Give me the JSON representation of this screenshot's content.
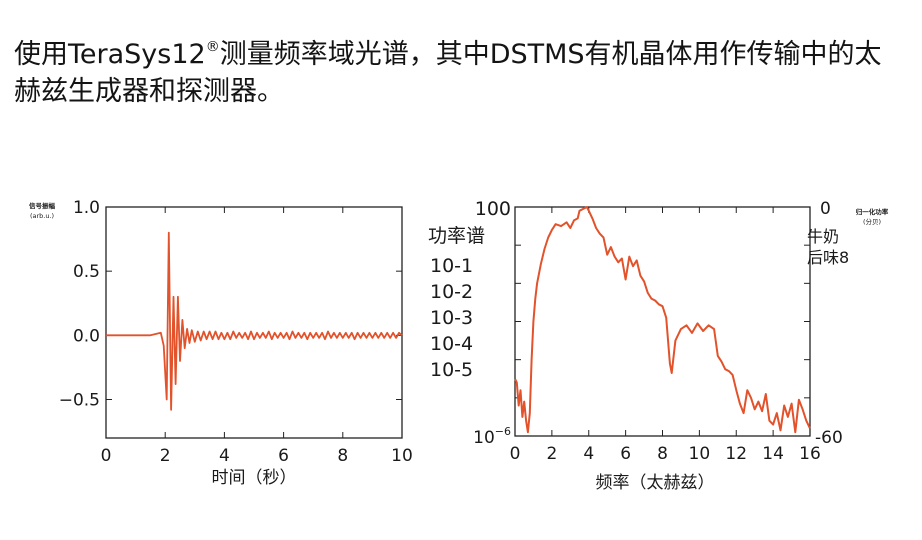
{
  "title": {
    "prefix": "使用TeraSys12",
    "mark": "®",
    "suffix": "测量频率域光谱，其中DSTMS有机晶体用作传输中的太赫兹生成器和探测器。"
  },
  "colors": {
    "trace": "#e2522b",
    "axis": "#222222",
    "text": "#1a1a1a"
  },
  "chart_data": [
    {
      "type": "line",
      "title": "",
      "xlabel": "时间（秒）",
      "ylabel_line1": "信号振幅",
      "ylabel_line2": "(arb.u.)",
      "xlim": [
        0,
        10
      ],
      "ylim": [
        -0.8,
        1.0
      ],
      "xticks": [
        0,
        2,
        4,
        6,
        8,
        10
      ],
      "xtick_labels": [
        "0",
        "2",
        "4",
        "6",
        "8",
        "10"
      ],
      "yticks": [
        1.0,
        0.5,
        0.0,
        -0.5
      ],
      "ytick_labels": [
        "1.0",
        "0.5",
        "0.0",
        "−0.5"
      ],
      "series": [
        {
          "x": [
            0,
            1.5,
            1.85,
            1.95,
            2.05,
            2.12,
            2.2,
            2.28,
            2.35,
            2.43,
            2.5,
            2.58,
            2.66,
            2.74,
            2.82,
            2.9,
            3.0,
            3.1,
            3.2,
            3.3,
            3.4,
            3.5,
            3.6,
            3.7,
            3.8,
            3.9,
            4.0,
            4.1,
            4.2,
            4.3,
            4.4,
            4.5,
            4.6,
            4.7,
            4.8,
            4.9,
            5.0,
            5.1,
            5.2,
            5.3,
            5.4,
            5.5,
            5.6,
            5.7,
            5.8,
            5.9,
            6.0,
            6.1,
            6.2,
            6.3,
            6.4,
            6.5,
            6.6,
            6.7,
            6.8,
            6.9,
            7.0,
            7.1,
            7.2,
            7.3,
            7.4,
            7.5,
            7.6,
            7.7,
            7.8,
            7.9,
            8.0,
            8.1,
            8.2,
            8.3,
            8.4,
            8.5,
            8.6,
            8.7,
            8.8,
            8.9,
            9.0,
            9.1,
            9.2,
            9.3,
            9.4,
            9.5,
            9.6,
            9.7,
            9.8,
            9.9,
            10.0
          ],
          "y": [
            0.0,
            0.0,
            0.02,
            -0.08,
            -0.5,
            0.8,
            -0.58,
            0.3,
            -0.38,
            0.3,
            -0.2,
            0.12,
            -0.1,
            0.05,
            -0.06,
            0.04,
            -0.05,
            0.03,
            -0.04,
            0.03,
            -0.03,
            0.03,
            -0.03,
            0.03,
            -0.03,
            0.02,
            -0.03,
            0.02,
            -0.03,
            0.03,
            -0.02,
            0.02,
            -0.02,
            0.02,
            -0.03,
            0.03,
            -0.03,
            0.02,
            -0.02,
            0.02,
            -0.02,
            0.03,
            -0.03,
            0.02,
            -0.02,
            0.02,
            -0.02,
            0.02,
            -0.03,
            0.03,
            -0.02,
            0.02,
            -0.02,
            0.02,
            -0.03,
            0.02,
            -0.02,
            0.02,
            -0.02,
            0.02,
            -0.03,
            0.03,
            -0.02,
            0.02,
            -0.02,
            0.02,
            -0.02,
            0.02,
            -0.02,
            0.02,
            -0.03,
            0.02,
            -0.02,
            0.02,
            -0.02,
            0.02,
            -0.02,
            0.02,
            -0.02,
            0.02,
            -0.02,
            0.02,
            -0.02,
            0.02,
            -0.02,
            0.02,
            0.0
          ]
        }
      ]
    },
    {
      "type": "line",
      "title": "",
      "xlabel": "频率（太赫兹）",
      "ylabel": "功率谱",
      "right_ylabel_line1": "归一化功率",
      "right_ylabel_line2": "(分贝)",
      "xlim": [
        0,
        16
      ],
      "ylim_log10": [
        -6,
        0
      ],
      "xticks": [
        0,
        2,
        4,
        6,
        8,
        10,
        12,
        14,
        16
      ],
      "xtick_labels": [
        "0",
        "2",
        "4",
        "6",
        "8",
        "10",
        "12",
        "14",
        "16"
      ],
      "ytick_top": "100",
      "ytick_bottom_base": "10",
      "ytick_bottom_exp": "−6",
      "ylabel_stack": [
        "10-1",
        "10-2",
        "10-3",
        "10-4",
        "10-5"
      ],
      "right_ytick_top": "0",
      "right_ytick_bottom": "-60",
      "side_note_line1": "牛奶",
      "side_note_line2": "后味8",
      "series": [
        {
          "x": [
            0.0,
            0.1,
            0.2,
            0.3,
            0.4,
            0.5,
            0.6,
            0.7,
            0.8,
            0.9,
            1.0,
            1.1,
            1.2,
            1.4,
            1.6,
            1.8,
            2.0,
            2.2,
            2.5,
            2.8,
            3.0,
            3.2,
            3.4,
            3.5,
            3.7,
            3.9,
            4.0,
            4.2,
            4.4,
            4.6,
            4.8,
            5.0,
            5.2,
            5.4,
            5.6,
            5.8,
            6.0,
            6.2,
            6.4,
            6.6,
            6.8,
            7.0,
            7.2,
            7.4,
            7.6,
            7.8,
            8.0,
            8.2,
            8.4,
            8.5,
            8.7,
            9.0,
            9.3,
            9.6,
            9.9,
            10.2,
            10.5,
            10.8,
            11.0,
            11.2,
            11.4,
            11.6,
            11.8,
            12.0,
            12.2,
            12.4,
            12.6,
            12.8,
            13.0,
            13.2,
            13.4,
            13.6,
            13.8,
            14.0,
            14.2,
            14.4,
            14.6,
            14.8,
            15.0,
            15.2,
            15.4,
            15.6,
            15.8,
            16.0
          ],
          "y": [
            -4.5,
            -4.6,
            -5.2,
            -4.8,
            -5.5,
            -5.1,
            -5.6,
            -5.9,
            -5.4,
            -4.0,
            -3.0,
            -2.4,
            -2.0,
            -1.5,
            -1.1,
            -0.8,
            -0.6,
            -0.45,
            -0.5,
            -0.4,
            -0.55,
            -0.35,
            -0.3,
            -0.1,
            -0.05,
            0.0,
            -0.1,
            -0.3,
            -0.55,
            -0.7,
            -0.8,
            -1.25,
            -1.05,
            -1.3,
            -1.45,
            -1.35,
            -1.9,
            -1.3,
            -1.55,
            -1.4,
            -1.8,
            -1.95,
            -2.25,
            -2.4,
            -2.45,
            -2.55,
            -2.6,
            -2.9,
            -4.1,
            -4.35,
            -3.5,
            -3.2,
            -3.1,
            -3.3,
            -3.05,
            -3.25,
            -3.1,
            -3.2,
            -3.9,
            -4.05,
            -4.25,
            -4.3,
            -4.4,
            -4.8,
            -5.15,
            -5.4,
            -4.8,
            -5.0,
            -5.3,
            -5.1,
            -5.35,
            -4.9,
            -5.6,
            -5.7,
            -5.4,
            -5.85,
            -5.2,
            -5.5,
            -5.15,
            -5.9,
            -5.05,
            -5.3,
            -5.6,
            -5.8
          ]
        }
      ]
    }
  ]
}
